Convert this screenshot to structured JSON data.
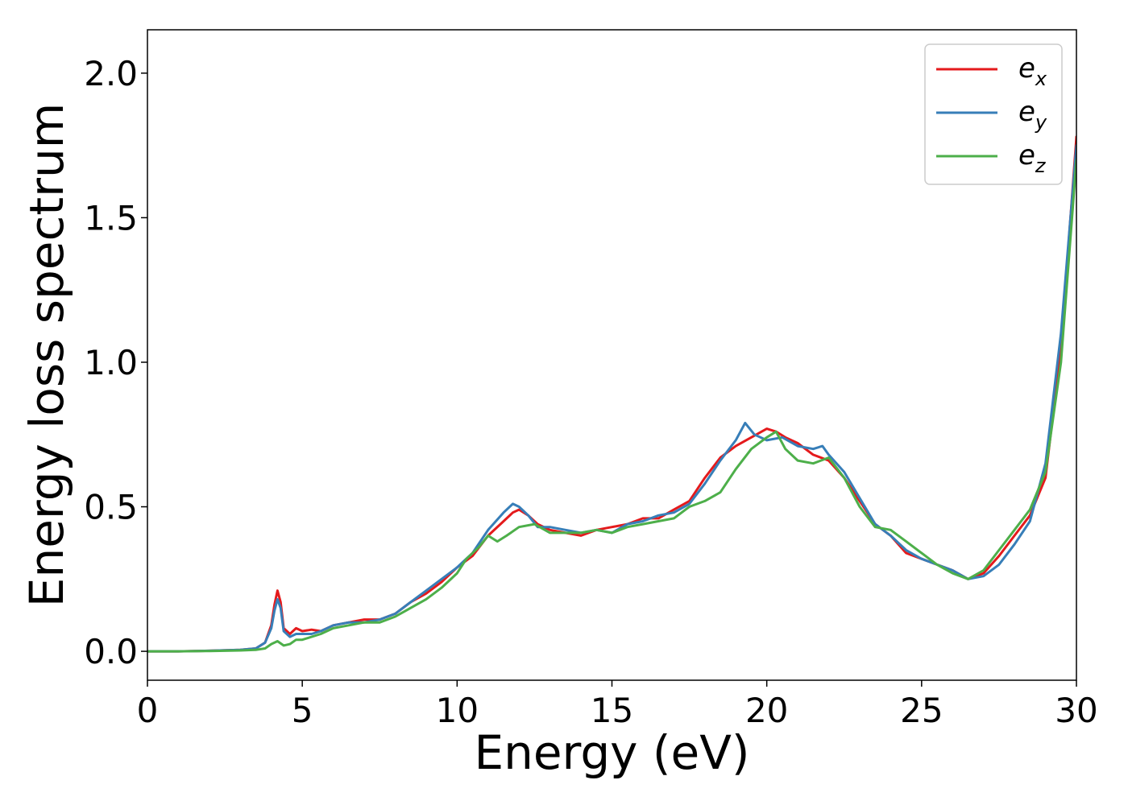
{
  "chart_data": {
    "type": "line",
    "xlabel": "Energy (eV)",
    "ylabel": "Energy loss spectrum",
    "xlim": [
      0,
      30
    ],
    "ylim": [
      -0.1,
      2.15
    ],
    "xticks": [
      "0",
      "5",
      "10",
      "15",
      "20",
      "25",
      "30"
    ],
    "yticks": [
      "0.0",
      "0.5",
      "1.0",
      "1.5",
      "2.0"
    ],
    "grid": false,
    "legend_position": "top-right",
    "series": [
      {
        "name": "e",
        "subscript": "x",
        "color": "#e41a1c",
        "x": [
          0,
          1,
          2,
          3,
          3.5,
          3.8,
          4.0,
          4.1,
          4.2,
          4.3,
          4.4,
          4.6,
          4.8,
          5.0,
          5.3,
          5.6,
          6.0,
          6.5,
          7.0,
          7.5,
          8.0,
          8.5,
          9.0,
          9.5,
          10.0,
          10.5,
          11.0,
          11.5,
          11.8,
          12.0,
          12.3,
          12.6,
          13.0,
          13.5,
          14.0,
          14.5,
          15.0,
          15.5,
          16.0,
          16.5,
          17.0,
          17.5,
          18.0,
          18.5,
          19.0,
          19.5,
          20.0,
          20.3,
          20.6,
          21.0,
          21.5,
          22.0,
          22.5,
          23.0,
          23.5,
          24.0,
          24.5,
          25.0,
          25.5,
          26.0,
          26.5,
          27.0,
          27.5,
          28.0,
          28.5,
          29.0,
          29.5,
          30.0
        ],
        "y": [
          0.0,
          0.0,
          0.002,
          0.005,
          0.01,
          0.03,
          0.09,
          0.16,
          0.21,
          0.17,
          0.08,
          0.06,
          0.08,
          0.07,
          0.075,
          0.07,
          0.09,
          0.1,
          0.11,
          0.11,
          0.13,
          0.17,
          0.2,
          0.24,
          0.29,
          0.33,
          0.4,
          0.45,
          0.48,
          0.49,
          0.47,
          0.44,
          0.42,
          0.41,
          0.4,
          0.42,
          0.43,
          0.44,
          0.46,
          0.46,
          0.49,
          0.52,
          0.6,
          0.67,
          0.71,
          0.74,
          0.77,
          0.76,
          0.74,
          0.72,
          0.68,
          0.66,
          0.6,
          0.52,
          0.44,
          0.4,
          0.34,
          0.32,
          0.3,
          0.28,
          0.25,
          0.27,
          0.33,
          0.4,
          0.47,
          0.6,
          1.05,
          1.78
        ]
      },
      {
        "name": "e",
        "subscript": "y",
        "color": "#377eb8",
        "x": [
          0,
          1,
          2,
          3,
          3.5,
          3.8,
          4.0,
          4.1,
          4.2,
          4.3,
          4.4,
          4.6,
          4.8,
          5.0,
          5.3,
          5.6,
          6.0,
          6.5,
          7.0,
          7.5,
          8.0,
          8.5,
          9.0,
          9.5,
          10.0,
          10.5,
          11.0,
          11.5,
          11.8,
          12.0,
          12.3,
          12.6,
          13.0,
          13.5,
          14.0,
          14.5,
          15.0,
          15.5,
          16.0,
          16.5,
          17.0,
          17.5,
          18.0,
          18.5,
          19.0,
          19.3,
          19.6,
          20.0,
          20.5,
          21.0,
          21.5,
          21.8,
          22.0,
          22.5,
          23.0,
          23.5,
          24.0,
          24.5,
          25.0,
          25.5,
          26.0,
          26.5,
          27.0,
          27.5,
          28.0,
          28.5,
          29.0,
          29.5,
          30.0
        ],
        "y": [
          0.0,
          0.0,
          0.002,
          0.005,
          0.01,
          0.03,
          0.08,
          0.14,
          0.18,
          0.15,
          0.07,
          0.05,
          0.06,
          0.06,
          0.06,
          0.07,
          0.09,
          0.1,
          0.1,
          0.11,
          0.13,
          0.17,
          0.21,
          0.25,
          0.29,
          0.34,
          0.42,
          0.48,
          0.51,
          0.5,
          0.47,
          0.43,
          0.43,
          0.42,
          0.41,
          0.42,
          0.41,
          0.44,
          0.45,
          0.47,
          0.48,
          0.51,
          0.58,
          0.66,
          0.73,
          0.79,
          0.75,
          0.73,
          0.74,
          0.71,
          0.7,
          0.71,
          0.68,
          0.62,
          0.53,
          0.44,
          0.4,
          0.35,
          0.32,
          0.3,
          0.28,
          0.25,
          0.26,
          0.3,
          0.37,
          0.45,
          0.65,
          1.1,
          1.75
        ]
      },
      {
        "name": "e",
        "subscript": "z",
        "color": "#4daf4a",
        "x": [
          0,
          1,
          2,
          3,
          3.5,
          3.8,
          4.0,
          4.2,
          4.4,
          4.6,
          4.8,
          5.0,
          5.3,
          5.6,
          6.0,
          6.5,
          7.0,
          7.5,
          8.0,
          8.5,
          9.0,
          9.5,
          10.0,
          10.3,
          10.7,
          11.0,
          11.3,
          11.6,
          12.0,
          12.5,
          13.0,
          13.5,
          14.0,
          14.5,
          15.0,
          15.5,
          16.0,
          16.5,
          17.0,
          17.5,
          18.0,
          18.5,
          19.0,
          19.5,
          20.0,
          20.3,
          20.6,
          21.0,
          21.5,
          22.0,
          22.5,
          23.0,
          23.5,
          24.0,
          24.5,
          25.0,
          25.5,
          26.0,
          26.5,
          27.0,
          27.5,
          28.0,
          28.5,
          29.0,
          29.5,
          30.0
        ],
        "y": [
          0.0,
          0.0,
          0.001,
          0.003,
          0.005,
          0.01,
          0.025,
          0.035,
          0.02,
          0.025,
          0.04,
          0.04,
          0.05,
          0.06,
          0.08,
          0.09,
          0.1,
          0.1,
          0.12,
          0.15,
          0.18,
          0.22,
          0.27,
          0.32,
          0.36,
          0.4,
          0.38,
          0.4,
          0.43,
          0.44,
          0.41,
          0.41,
          0.41,
          0.42,
          0.41,
          0.43,
          0.44,
          0.45,
          0.46,
          0.5,
          0.52,
          0.55,
          0.63,
          0.7,
          0.74,
          0.76,
          0.7,
          0.66,
          0.65,
          0.67,
          0.6,
          0.5,
          0.43,
          0.42,
          0.38,
          0.34,
          0.3,
          0.27,
          0.25,
          0.28,
          0.35,
          0.42,
          0.49,
          0.62,
          1.0,
          1.7
        ]
      }
    ]
  }
}
